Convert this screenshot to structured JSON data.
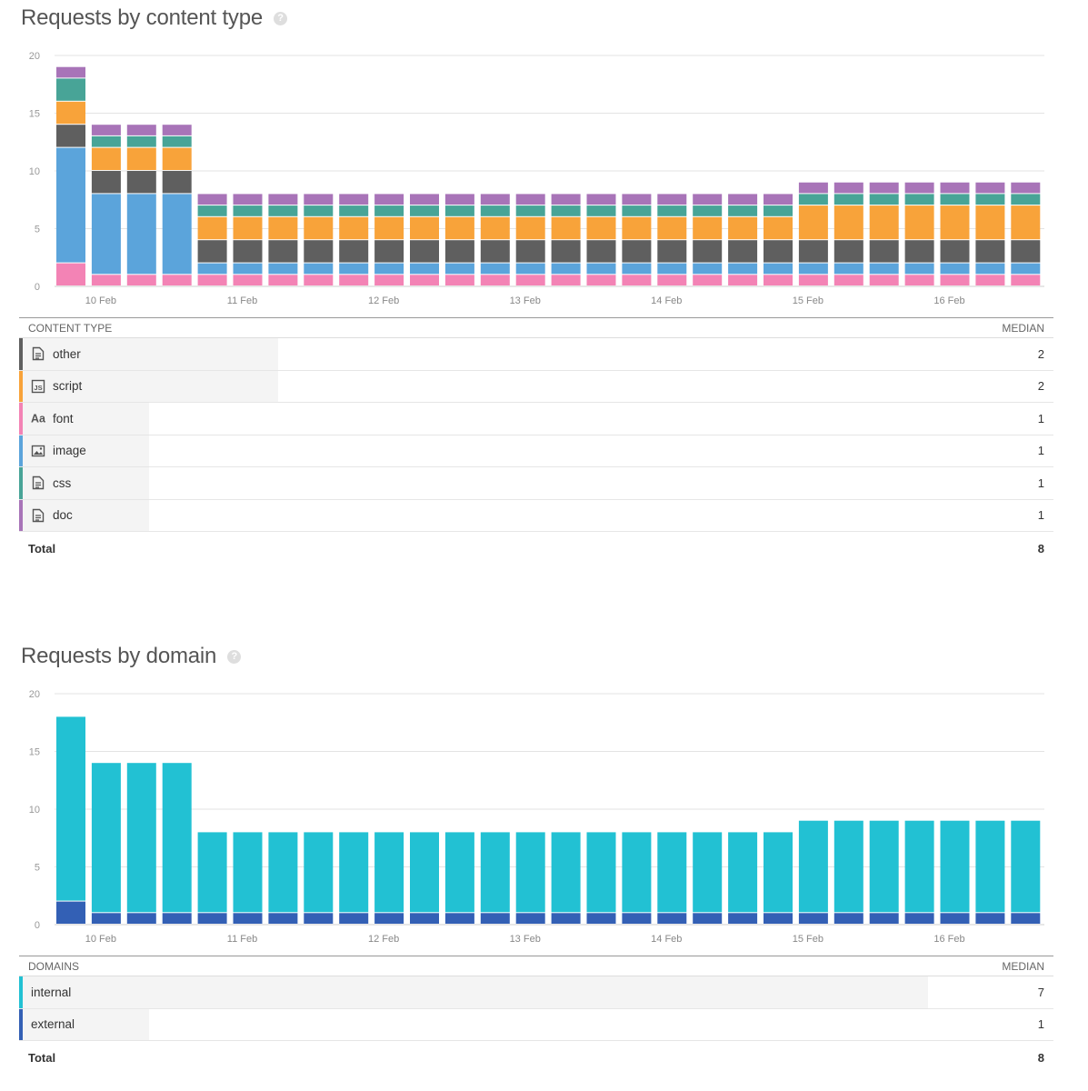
{
  "content_section": {
    "title": "Requests by content type",
    "table": {
      "col_label": "CONTENT TYPE",
      "col_value": "MEDIAN",
      "rows": [
        {
          "label": "other",
          "value": "2",
          "color": "#5f5f5f",
          "icon": "document-icon"
        },
        {
          "label": "script",
          "value": "2",
          "color": "#f8a33a",
          "icon": "js-file-icon"
        },
        {
          "label": "font",
          "value": "1",
          "color": "#f383b5",
          "icon": "font-icon"
        },
        {
          "label": "image",
          "value": "1",
          "color": "#5ba4db",
          "icon": "image-icon"
        },
        {
          "label": "css",
          "value": "1",
          "color": "#48a497",
          "icon": "document-icon"
        },
        {
          "label": "doc",
          "value": "1",
          "color": "#a874b8",
          "icon": "document-icon"
        }
      ],
      "total_label": "Total",
      "total_value": "8"
    }
  },
  "domain_section": {
    "title": "Requests by domain",
    "table": {
      "col_label": "DOMAINS",
      "col_value": "MEDIAN",
      "rows": [
        {
          "label": "internal",
          "value": "7",
          "color": "#22c1d3"
        },
        {
          "label": "external",
          "value": "1",
          "color": "#3360b5"
        }
      ],
      "total_label": "Total",
      "total_value": "8"
    }
  },
  "chart_data": [
    {
      "type": "bar",
      "stacked": true,
      "title": "Requests by content type",
      "ylim": [
        0,
        20
      ],
      "yticks": [
        0,
        5,
        10,
        15,
        20
      ],
      "xtick_labels": [
        "10 Feb",
        "11 Feb",
        "12 Feb",
        "13 Feb",
        "14 Feb",
        "15 Feb",
        "16 Feb"
      ],
      "xtick_bar_index": [
        1,
        5,
        9,
        13,
        17,
        21,
        25
      ],
      "grid": true,
      "series": [
        {
          "name": "font",
          "color": "#f383b5",
          "values": [
            2,
            1,
            1,
            1,
            1,
            1,
            1,
            1,
            1,
            1,
            1,
            1,
            1,
            1,
            1,
            1,
            1,
            1,
            1,
            1,
            1,
            1,
            1,
            1,
            1,
            1,
            1,
            1
          ]
        },
        {
          "name": "image",
          "color": "#5ba4db",
          "values": [
            10,
            7,
            7,
            7,
            1,
            1,
            1,
            1,
            1,
            1,
            1,
            1,
            1,
            1,
            1,
            1,
            1,
            1,
            1,
            1,
            1,
            1,
            1,
            1,
            1,
            1,
            1,
            1
          ]
        },
        {
          "name": "other",
          "color": "#5f5f5f",
          "values": [
            2,
            2,
            2,
            2,
            2,
            2,
            2,
            2,
            2,
            2,
            2,
            2,
            2,
            2,
            2,
            2,
            2,
            2,
            2,
            2,
            2,
            2,
            2,
            2,
            2,
            2,
            2,
            2
          ]
        },
        {
          "name": "script",
          "color": "#f8a33a",
          "values": [
            2,
            2,
            2,
            2,
            2,
            2,
            2,
            2,
            2,
            2,
            2,
            2,
            2,
            2,
            2,
            2,
            2,
            2,
            2,
            2,
            2,
            3,
            3,
            3,
            3,
            3,
            3,
            3
          ]
        },
        {
          "name": "css",
          "color": "#48a497",
          "values": [
            2,
            1,
            1,
            1,
            1,
            1,
            1,
            1,
            1,
            1,
            1,
            1,
            1,
            1,
            1,
            1,
            1,
            1,
            1,
            1,
            1,
            1,
            1,
            1,
            1,
            1,
            1,
            1
          ]
        },
        {
          "name": "doc",
          "color": "#a874b8",
          "values": [
            1,
            1,
            1,
            1,
            1,
            1,
            1,
            1,
            1,
            1,
            1,
            1,
            1,
            1,
            1,
            1,
            1,
            1,
            1,
            1,
            1,
            1,
            1,
            1,
            1,
            1,
            1,
            1
          ]
        }
      ]
    },
    {
      "type": "bar",
      "stacked": true,
      "title": "Requests by domain",
      "ylim": [
        0,
        20
      ],
      "yticks": [
        0,
        5,
        10,
        15,
        20
      ],
      "xtick_labels": [
        "10 Feb",
        "11 Feb",
        "12 Feb",
        "13 Feb",
        "14 Feb",
        "15 Feb",
        "16 Feb"
      ],
      "xtick_bar_index": [
        1,
        5,
        9,
        13,
        17,
        21,
        25
      ],
      "grid": true,
      "series": [
        {
          "name": "external",
          "color": "#3360b5",
          "values": [
            2,
            1,
            1,
            1,
            1,
            1,
            1,
            1,
            1,
            1,
            1,
            1,
            1,
            1,
            1,
            1,
            1,
            1,
            1,
            1,
            1,
            1,
            1,
            1,
            1,
            1,
            1,
            1
          ]
        },
        {
          "name": "internal",
          "color": "#22c1d3",
          "values": [
            16,
            13,
            13,
            13,
            7,
            7,
            7,
            7,
            7,
            7,
            7,
            7,
            7,
            7,
            7,
            7,
            7,
            7,
            7,
            7,
            7,
            8,
            8,
            8,
            8,
            8,
            8,
            8
          ]
        }
      ]
    }
  ]
}
